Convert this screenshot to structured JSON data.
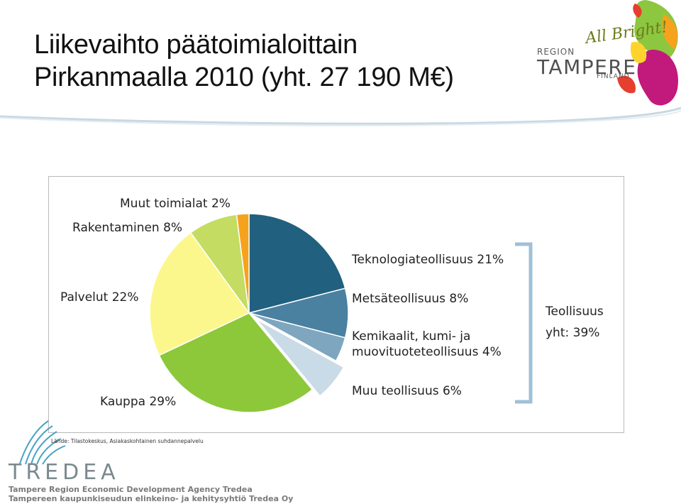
{
  "title": {
    "line1": "Liikevaihto päätoimialoittain",
    "line2": "Pirkanmaalla 2010 (yht. 27 190 M€)"
  },
  "logo": {
    "region": "REGION",
    "name": "TAMPERE",
    "country": "FINLAND",
    "slogan": "All Bright!"
  },
  "chart_data": {
    "type": "pie",
    "unit": "%",
    "slices": [
      {
        "label": "Teknologiateollisuus 21%",
        "value": 21,
        "color": "#21607f"
      },
      {
        "label": "Metsäteollisuus  8%",
        "value": 8,
        "color": "#4a80a0"
      },
      {
        "label": "Kemikaalit, kumi- ja muovituoteteollisuus  4%",
        "value": 4,
        "color": "#7ea6bf"
      },
      {
        "label": "Muu teollisuus 6%",
        "value": 6,
        "color": "#c9dbe6",
        "exploded": true
      },
      {
        "label": "Kauppa 29%",
        "value": 29,
        "color": "#8cc83a"
      },
      {
        "label": "Palvelut 22%",
        "value": 22,
        "color": "#fbf78c"
      },
      {
        "label": "Rakentaminen 8%",
        "value": 8,
        "color": "#c4dc62"
      },
      {
        "label": "Muut toimialat 2%",
        "value": 2,
        "color": "#f7a21c"
      }
    ],
    "group_annotation": {
      "line1": "Teollisuus",
      "line2": "yht: 39%",
      "color": "#9fc0d6"
    }
  },
  "labels": {
    "tekno": "Teknologiateollisuus 21%",
    "metsa": "Metsäteollisuus  8%",
    "kemi1": "Kemikaalit, kumi- ja",
    "kemi2": "muovituoteteollisuus  4%",
    "muuteol": "Muu teollisuus 6%",
    "kauppa": "Kauppa 29%",
    "palvelut": "Palvelut 22%",
    "rakentaminen": "Rakentaminen 8%",
    "muut": "Muut toimialat 2%",
    "teollisuus1": "Teollisuus",
    "teollisuus2": "yht: 39%"
  },
  "source": "Lähde: Tilastokeskus, Asiakaskohtainen suhdannepalvelu",
  "footer": {
    "brand": "TREDEA",
    "line1": "Tampere Region Economic Development Agency Tredea",
    "line2": "Tampereen kaupunkiseudun elinkeino- ja kehitysyhtiö Tredea Oy"
  }
}
